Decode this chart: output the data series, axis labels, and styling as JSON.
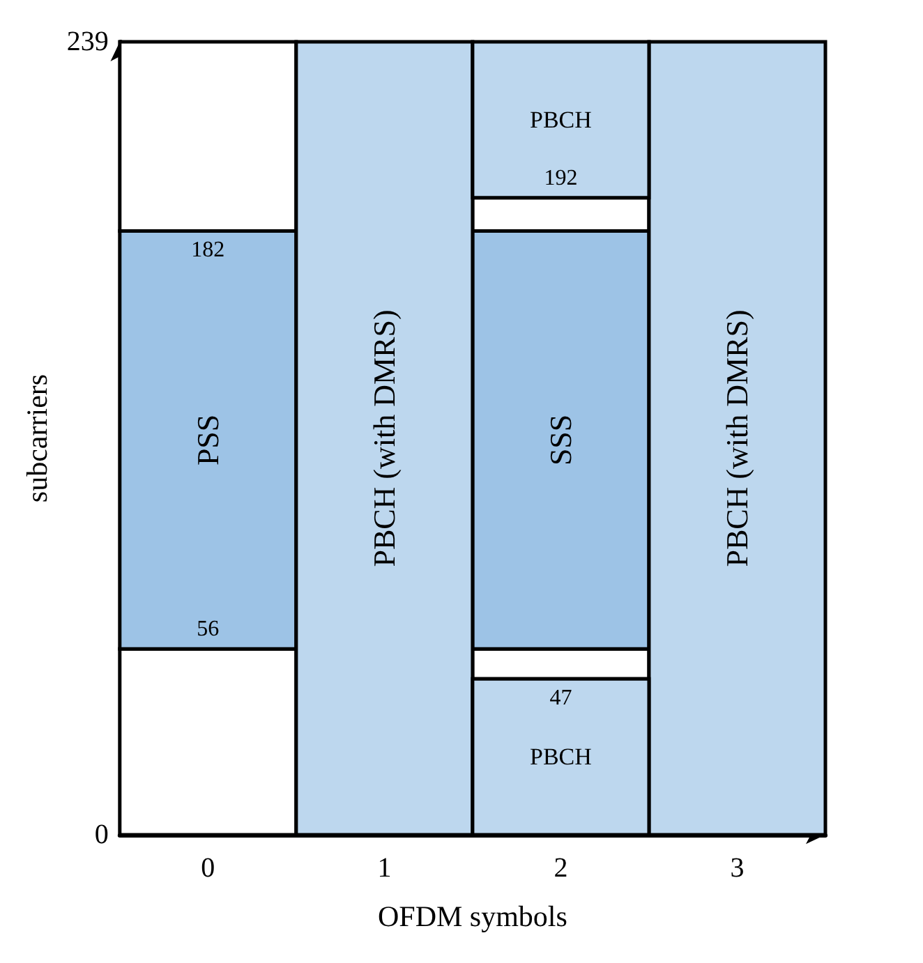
{
  "chart_data": {
    "type": "bar",
    "xlabel": "OFDM symbols",
    "ylabel": "subcarriers",
    "categories": [
      "0",
      "1",
      "2",
      "3"
    ],
    "series": [
      {
        "color": "#ffffff",
        "values": [
          56,
          null,
          9,
          null
        ],
        "base": [
          0,
          null,
          47,
          null
        ]
      },
      {
        "name": "PSS",
        "color": "#9dc3e6",
        "values": [
          126,
          null,
          null,
          null
        ],
        "base": [
          56,
          null,
          null,
          null
        ]
      },
      {
        "name": "SSS",
        "color": "#9dc3e6",
        "values": [
          null,
          null,
          126,
          null
        ],
        "base": [
          null,
          null,
          56,
          null
        ]
      },
      {
        "color": "#ffffff",
        "values": [
          57,
          null,
          10,
          null
        ],
        "base": [
          182,
          null,
          182,
          null
        ]
      },
      {
        "name": "PBCH (with DMRS)",
        "color": "#bdd7ee",
        "values": [
          null,
          239,
          null,
          239
        ],
        "base": [
          null,
          0,
          null,
          0
        ]
      },
      {
        "name": "PBCH",
        "color": "#bdd7ee",
        "values": [
          null,
          null,
          47,
          null
        ],
        "base": [
          null,
          null,
          0,
          null
        ]
      },
      {
        "name": "PBCH",
        "color": "#bdd7ee",
        "values": [
          null,
          null,
          47,
          null
        ],
        "base": [
          null,
          null,
          192,
          null
        ]
      }
    ],
    "ylim": [
      0,
      239
    ],
    "yticks": [
      0,
      239
    ],
    "annotations": [
      {
        "text": "182",
        "x": "0",
        "y": 182
      },
      {
        "text": "56",
        "x": "0",
        "y": 56
      },
      {
        "text": "192",
        "x": "2",
        "y": 192
      },
      {
        "text": "47",
        "x": "2",
        "y": 47
      }
    ]
  }
}
